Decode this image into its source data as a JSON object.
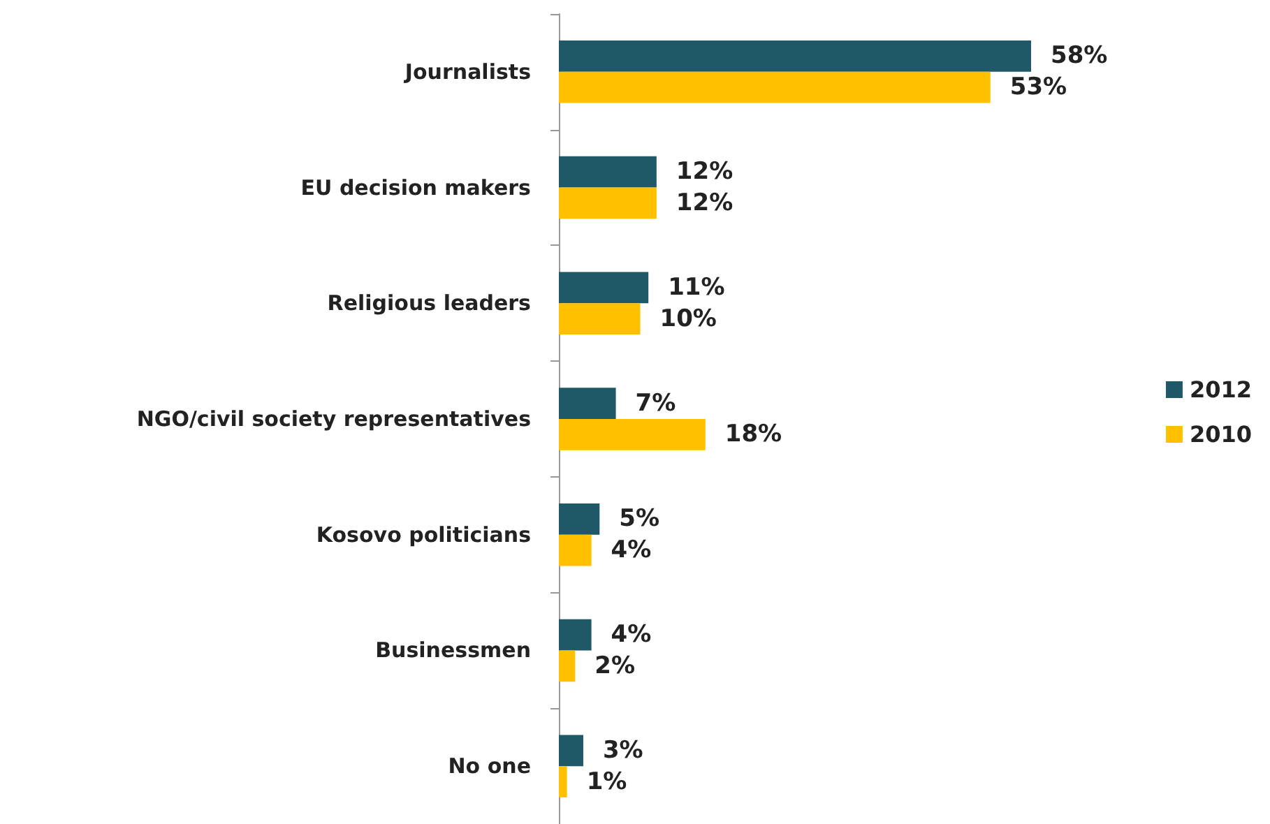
{
  "chart_data": {
    "type": "bar",
    "orientation": "horizontal",
    "categories": [
      "Journalists",
      "EU decision makers",
      "Religious leaders",
      "NGO/civil society representatives",
      "Kosovo politicians",
      "Businessmen",
      "No one"
    ],
    "series": [
      {
        "name": "2012",
        "color": "#1f5968",
        "values": [
          58,
          12,
          11,
          7,
          5,
          4,
          3
        ],
        "value_labels": [
          "58%",
          "12%",
          "11%",
          "7%",
          "5%",
          "4%",
          "3%"
        ]
      },
      {
        "name": "2010",
        "color": "#ffc000",
        "values": [
          53,
          12,
          10,
          18,
          4,
          2,
          1
        ],
        "value_labels": [
          "53%",
          "12%",
          "10%",
          "18%",
          "4%",
          "2%",
          "1%"
        ]
      }
    ],
    "legend": "right"
  }
}
